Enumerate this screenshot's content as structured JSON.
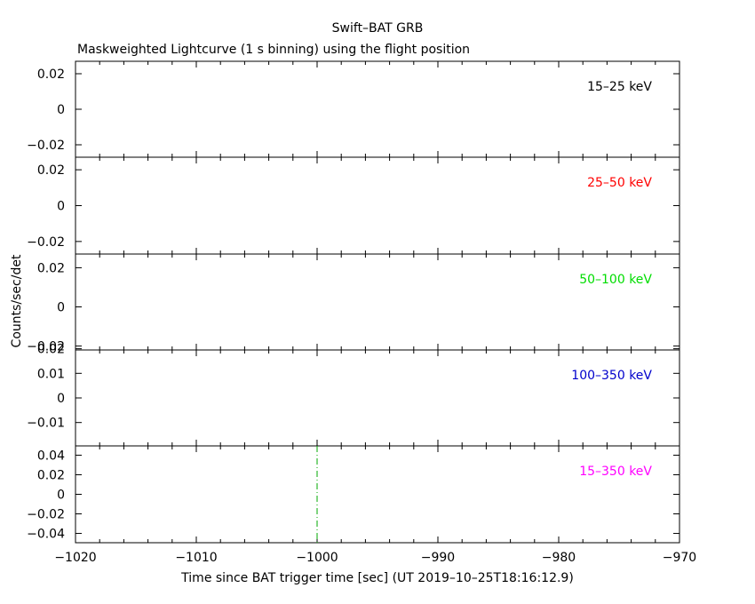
{
  "title": "Swift–BAT GRB",
  "subtitle": "Maskweighted Lightcurve (1 s binning) using the flight position",
  "ylabel": "Counts/sec/det",
  "xlabel": "Time since BAT trigger time [sec] (UT 2019–10–25T18:16:12.9)",
  "chart_data": {
    "type": "line",
    "xlim": [
      -1020,
      -970
    ],
    "x_ticks": [
      -1020,
      -1010,
      -1000,
      -990,
      -980,
      -970
    ],
    "x_tick_labels": [
      "−1020",
      "−1010",
      "−1000",
      "−990",
      "−980",
      "−970"
    ],
    "trigger_marker_x": -1000,
    "panels": [
      {
        "label": "15–25 keV",
        "color": "#000000",
        "ylim": [
          -0.027,
          0.027
        ],
        "y_ticks": [
          -0.02,
          0,
          0.02
        ],
        "y_tick_labels": [
          "−0.02",
          "0",
          "0.02"
        ]
      },
      {
        "label": "25–50 keV",
        "color": "#ff0000",
        "ylim": [
          -0.027,
          0.027
        ],
        "y_ticks": [
          -0.02,
          0,
          0.02
        ],
        "y_tick_labels": [
          "−0.02",
          "0",
          "0.02"
        ]
      },
      {
        "label": "50–100 keV",
        "color": "#00dd00",
        "ylim": [
          -0.022,
          0.027
        ],
        "y_ticks": [
          -0.02,
          0,
          0.02
        ],
        "y_tick_labels": [
          "−0.02",
          "0",
          "0.02"
        ]
      },
      {
        "label": "100–350 keV",
        "color": "#0000cc",
        "ylim": [
          -0.0195,
          0.0195
        ],
        "y_ticks": [
          -0.01,
          0,
          0.01,
          0.02
        ],
        "y_tick_labels": [
          "−0.01",
          "0",
          "0.01",
          "0.02"
        ]
      },
      {
        "label": "15–350 keV",
        "color": "#ff00ff",
        "ylim": [
          -0.0495,
          0.0495
        ],
        "y_ticks": [
          -0.04,
          -0.02,
          0,
          0.02,
          0.04
        ],
        "y_tick_labels": [
          "−0.04",
          "−0.02",
          "0",
          "0.02",
          "0.04"
        ]
      }
    ]
  }
}
